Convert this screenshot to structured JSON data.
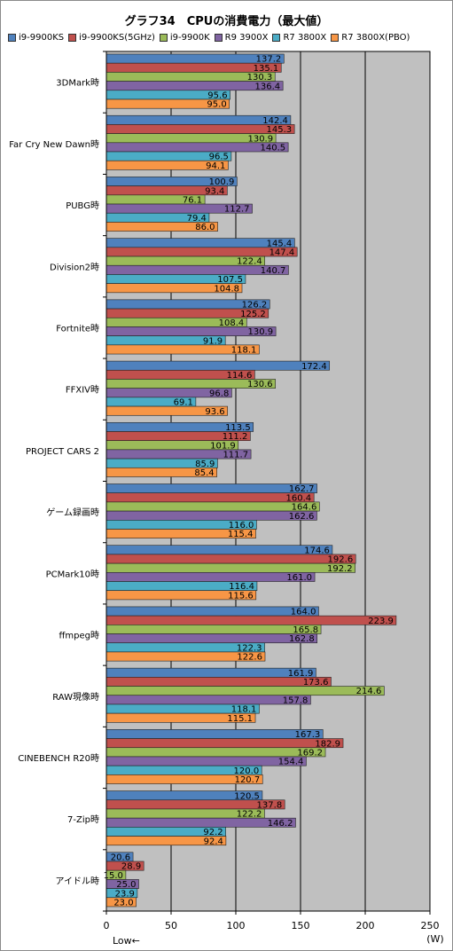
{
  "chart_data": {
    "type": "bar",
    "orientation": "horizontal",
    "title": "グラフ34　CPUの消費電力（最大値）",
    "categories": [
      "3DMark時",
      "Far Cry New Dawn時",
      "PUBG時",
      "Division2時",
      "Fortnite時",
      "FFXIV時",
      "PROJECT CARS 2",
      "ゲーム録画時",
      "PCMark10時",
      "ffmpeg時",
      "RAW現像時",
      "CINEBENCH R20時",
      "7-Zip時",
      "アイドル時"
    ],
    "series": [
      {
        "name": "i9-9900KS",
        "color": "#4f81bd",
        "values": [
          137.2,
          142.4,
          100.9,
          145.4,
          126.2,
          172.4,
          113.5,
          162.7,
          174.6,
          164.0,
          161.9,
          167.3,
          120.5,
          20.6
        ]
      },
      {
        "name": "i9-9900KS(5GHz)",
        "color": "#c0504d",
        "values": [
          135.1,
          145.3,
          93.4,
          147.4,
          125.2,
          114.6,
          111.2,
          160.4,
          192.6,
          223.9,
          173.6,
          182.9,
          137.8,
          28.9
        ]
      },
      {
        "name": "i9-9900K",
        "color": "#9bbb59",
        "values": [
          130.3,
          130.9,
          76.1,
          122.4,
          108.4,
          130.6,
          101.9,
          164.6,
          192.2,
          165.8,
          214.6,
          169.2,
          122.2,
          15.0
        ]
      },
      {
        "name": "R9 3900X",
        "color": "#8064a2",
        "values": [
          136.4,
          140.5,
          112.7,
          140.7,
          130.9,
          96.8,
          111.7,
          162.6,
          161.0,
          162.8,
          157.8,
          154.4,
          146.2,
          25.0
        ]
      },
      {
        "name": "R7 3800X",
        "color": "#4bacc6",
        "values": [
          95.6,
          96.5,
          79.4,
          107.5,
          91.9,
          69.1,
          85.9,
          116.0,
          116.4,
          122.3,
          118.1,
          120.0,
          92.2,
          23.9
        ]
      },
      {
        "name": "R7 3800X(PBO)",
        "color": "#f79646",
        "values": [
          95.0,
          94.1,
          86.0,
          104.8,
          118.1,
          93.6,
          85.4,
          115.4,
          115.6,
          122.6,
          115.1,
          120.7,
          92.4,
          23.0
        ]
      }
    ],
    "xlim": [
      0,
      250
    ],
    "xticks": [
      "0",
      "50",
      "100",
      "150",
      "200",
      "250"
    ],
    "unit": "(W)",
    "low_note": "Low←",
    "grid": true,
    "legend_position": "top"
  }
}
